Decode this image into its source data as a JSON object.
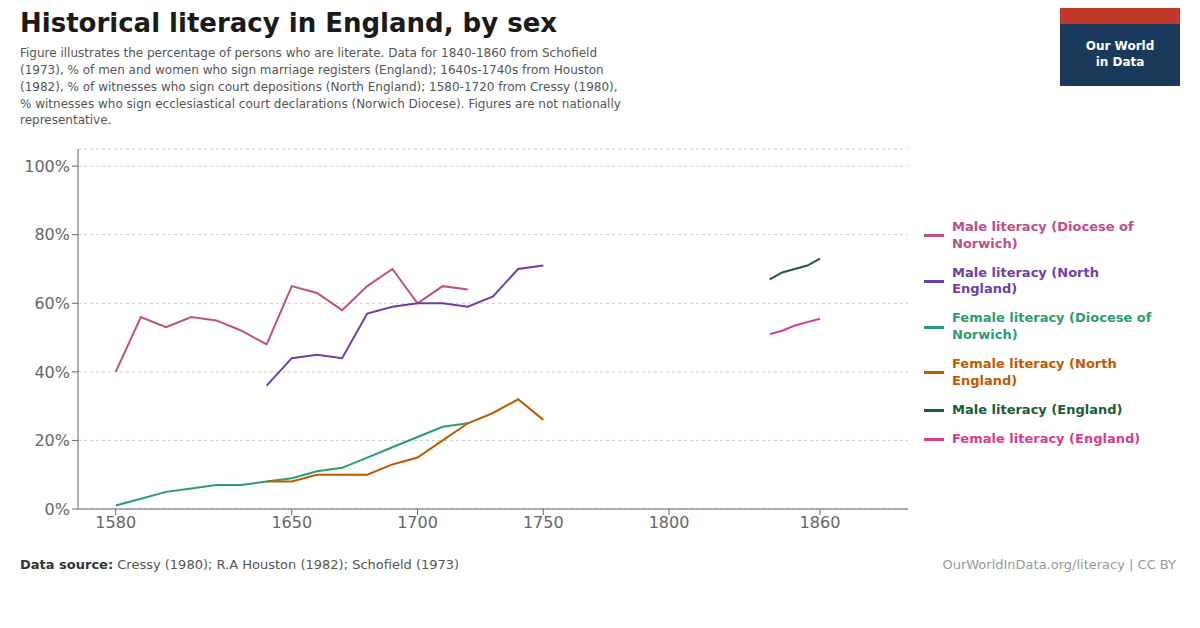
{
  "chart_data": {
    "type": "line",
    "title": "Historical literacy in England, by sex",
    "subtitle": "Figure illustrates the percentage of persons who are literate. Data for 1840-1860 from Schofield\n(1973), % of men and women who sign marriage registers (England); 1640s-1740s from Houston\n(1982), % of witnesses who sign court depositions (North England); 1580-1720 from Cressy (1980),\n% witnesses who sign ecclesiastical court declarations (Norwich Diocese). Figures are not nationally\nrepresentative.",
    "annotations": [
      {
        "text": "Data source:"
      },
      {
        "text": " Cressy (1980); R.A Houston (1982); Schofield (1973)"
      },
      {
        "text": "OurWorldInData.org/literacy | CC BY"
      },
      {
        "text": "Our World\nin Data",
        "colors": [
          "#1a3a5c",
          "#c0392b"
        ]
      }
    ],
    "series": [
      {
        "name": "Male literacy (Diocese of\nNorwich)",
        "color": "#bf4e87",
        "x": [
          1580,
          1590,
          1600,
          1610,
          1620,
          1630,
          1640,
          1650,
          1660,
          1670,
          1680,
          1690,
          1700,
          1710,
          1720
        ],
        "values": [
          0.4,
          0.56,
          0.53,
          0.56,
          0.55,
          0.52,
          0.48,
          0.65,
          0.63,
          0.58,
          0.65,
          0.7,
          0.6,
          0.65,
          0.64
        ]
      },
      {
        "name": "Male literacy (North England)",
        "color": "#6e3fa3",
        "x": [
          1640,
          1650,
          1660,
          1670,
          1680,
          1690,
          1700,
          1710,
          1720,
          1730,
          1740,
          1750
        ],
        "values": [
          0.36,
          0.44,
          0.45,
          0.44,
          0.57,
          0.59,
          0.6,
          0.6,
          0.59,
          0.62,
          0.7,
          0.71
        ]
      },
      {
        "name": "Female literacy (Diocese of\nNorwich)",
        "color": "#2a9d6e",
        "x": [
          1580,
          1590,
          1600,
          1610,
          1620,
          1630,
          1640,
          1650,
          1660,
          1670,
          1680,
          1690,
          1700,
          1710,
          1720
        ],
        "values": [
          0.01,
          0.03,
          0.05,
          0.06,
          0.07,
          0.07,
          0.08,
          0.09,
          0.11,
          0.12,
          0.15,
          0.18,
          0.21,
          0.24,
          0.25
        ]
      },
      {
        "name": "Female literacy (North\nEngland)",
        "color": "#c05a00",
        "x": [
          1640,
          1650,
          1660,
          1670,
          1680,
          1690,
          1700,
          1710,
          1720,
          1730,
          1740,
          1750
        ],
        "values": [
          0.08,
          0.08,
          0.1,
          0.1,
          0.1,
          0.13,
          0.15,
          0.2,
          0.25,
          0.28,
          0.32,
          0.26
        ]
      },
      {
        "name": "Male literacy (England)",
        "color": "#1a5c35",
        "x": [
          1840,
          1845,
          1850,
          1855,
          1860
        ],
        "values": [
          0.67,
          0.69,
          0.7,
          0.71,
          0.73
        ]
      },
      {
        "name": "Female literacy (England)",
        "color": "#d63d8a",
        "x": [
          1840,
          1845,
          1850,
          1855,
          1860
        ],
        "values": [
          0.51,
          0.52,
          0.535,
          0.545,
          0.555
        ]
      }
    ],
    "xlim": [
      1565,
      1895
    ],
    "ylim": [
      0,
      1.05
    ],
    "xticks": [
      1580,
      1650,
      1700,
      1750,
      1800,
      1860
    ],
    "yticks": [
      {
        "value": 0.0,
        "label": "0%"
      },
      {
        "value": 0.2,
        "label": "20%"
      },
      {
        "value": 0.4,
        "label": "40%"
      },
      {
        "value": 0.6,
        "label": "60%"
      },
      {
        "value": 0.8,
        "label": "80%"
      },
      {
        "value": 1.0,
        "label": "100%"
      }
    ],
    "grid": true,
    "legend": "right"
  }
}
